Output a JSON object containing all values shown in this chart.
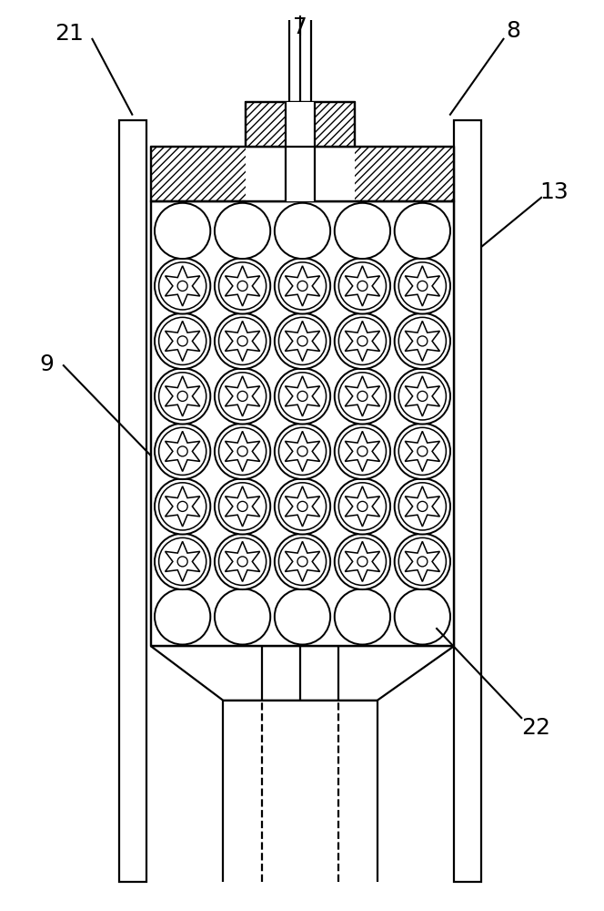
{
  "fig_width": 6.64,
  "fig_height": 10.0,
  "bg_color": "#ffffff",
  "lc": "#000000",
  "lw": 1.6,
  "label_fontsize": 18
}
